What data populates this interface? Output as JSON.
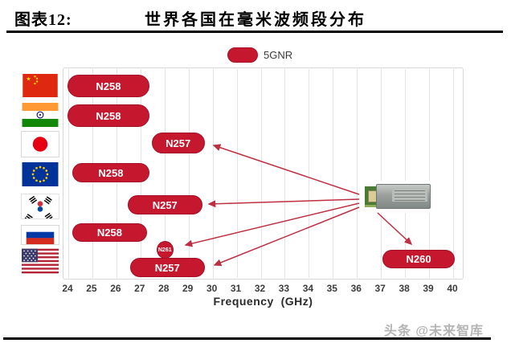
{
  "header": {
    "label": "图表12:",
    "title": "世界各国在毫米波频段分布"
  },
  "legend": {
    "label": "5GNR",
    "color": "#C5182F"
  },
  "chart_data": {
    "type": "bar",
    "title": "世界各国在毫米波频段分布",
    "xlabel": "Frequency  (GHz)",
    "xlim": [
      24,
      40
    ],
    "xticks": [
      24,
      25,
      26,
      27,
      28,
      29,
      30,
      31,
      32,
      33,
      34,
      35,
      36,
      37,
      38,
      39,
      40
    ],
    "grid": "vertical",
    "legend": [
      "5GNR"
    ],
    "bar_color": "#C5182F",
    "rows": [
      {
        "country": "China",
        "flag_icon": "china-flag-icon",
        "bands": [
          {
            "label": "N258",
            "start": 24.0,
            "end": 27.4
          }
        ]
      },
      {
        "country": "India",
        "flag_icon": "india-flag-icon",
        "bands": [
          {
            "label": "N258",
            "start": 24.0,
            "end": 27.4
          }
        ]
      },
      {
        "country": "Japan",
        "flag_icon": "japan-flag-icon",
        "bands": [
          {
            "label": "N257",
            "start": 27.5,
            "end": 29.7
          }
        ]
      },
      {
        "country": "EU",
        "flag_icon": "eu-flag-icon",
        "bands": [
          {
            "label": "N258",
            "start": 24.2,
            "end": 27.4
          }
        ]
      },
      {
        "country": "South Korea",
        "flag_icon": "south-korea-flag-icon",
        "bands": [
          {
            "label": "N257",
            "start": 26.5,
            "end": 29.6
          }
        ]
      },
      {
        "country": "Russia",
        "flag_icon": "russia-flag-icon",
        "bands": [
          {
            "label": "N258",
            "start": 24.2,
            "end": 27.3
          }
        ]
      },
      {
        "country": "USA",
        "flag_icon": "usa-flag-icon",
        "bands": [
          {
            "label": "N261",
            "start": 27.7,
            "end": 28.4,
            "shape": "circle"
          },
          {
            "label": "N257",
            "start": 26.6,
            "end": 29.7
          },
          {
            "label": "N260",
            "start": 37.1,
            "end": 40.1
          }
        ]
      }
    ],
    "annotation": {
      "icon": "rf-module-chip-image",
      "arrow_targets": [
        "N257 (Japan)",
        "N257 (South Korea)",
        "N261 (USA)",
        "N257 (USA)",
        "N260 (USA)"
      ]
    }
  },
  "axis": {
    "label": "Frequency  (GHz)"
  },
  "watermark": {
    "text": "头条 @未来智库"
  }
}
